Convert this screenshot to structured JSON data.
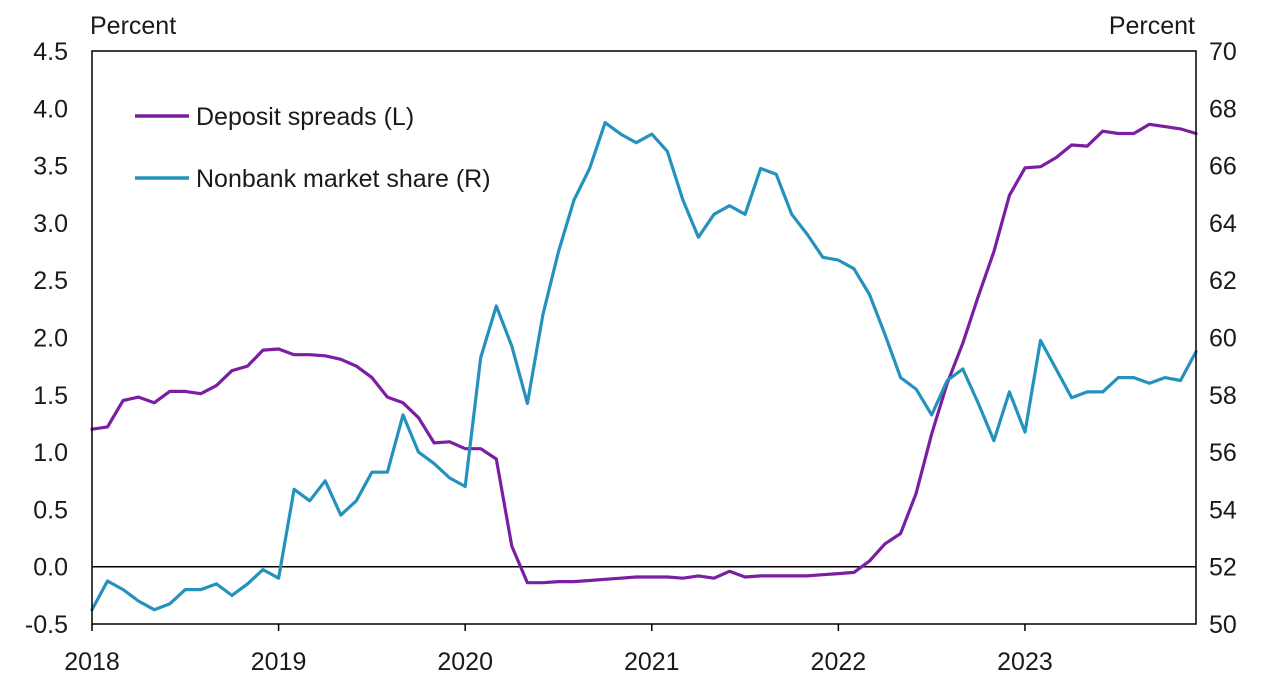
{
  "chart_data": {
    "type": "line",
    "title": "",
    "left_axis": {
      "label": "Percent",
      "ylim": [
        -0.5,
        4.5
      ],
      "ticks": [
        "4.5",
        "4.0",
        "3.5",
        "3.0",
        "2.5",
        "2.0",
        "1.5",
        "1.0",
        "0.5",
        "0.0",
        "-0.5"
      ]
    },
    "right_axis": {
      "label": "Percent",
      "ylim": [
        50,
        70
      ],
      "ticks": [
        "70",
        "68",
        "66",
        "64",
        "62",
        "60",
        "58",
        "56",
        "54",
        "52",
        "50"
      ]
    },
    "x_axis": {
      "range": [
        "2018-01",
        "2023-12"
      ],
      "ticks": [
        "2018",
        "2019",
        "2020",
        "2021",
        "2022",
        "2023"
      ]
    },
    "zero_line": true,
    "grid": false,
    "legend_placement": "top-left",
    "series": [
      {
        "name": "Deposit spreads (L)",
        "axis": "left",
        "color": "#7B1FA2",
        "x": [
          "2018-01",
          "2018-02",
          "2018-03",
          "2018-04",
          "2018-05",
          "2018-06",
          "2018-07",
          "2018-08",
          "2018-09",
          "2018-10",
          "2018-11",
          "2018-12",
          "2019-01",
          "2019-02",
          "2019-03",
          "2019-04",
          "2019-05",
          "2019-06",
          "2019-07",
          "2019-08",
          "2019-09",
          "2019-10",
          "2019-11",
          "2019-12",
          "2020-01",
          "2020-02",
          "2020-03",
          "2020-04",
          "2020-05",
          "2020-06",
          "2020-07",
          "2020-08",
          "2020-09",
          "2020-10",
          "2020-11",
          "2020-12",
          "2021-01",
          "2021-02",
          "2021-03",
          "2021-04",
          "2021-05",
          "2021-06",
          "2021-07",
          "2021-08",
          "2021-09",
          "2021-10",
          "2021-11",
          "2021-12",
          "2022-01",
          "2022-02",
          "2022-03",
          "2022-04",
          "2022-05",
          "2022-06",
          "2022-07",
          "2022-08",
          "2022-09",
          "2022-10",
          "2022-11",
          "2022-12",
          "2023-01",
          "2023-02",
          "2023-03",
          "2023-04",
          "2023-05",
          "2023-06",
          "2023-07",
          "2023-08",
          "2023-09",
          "2023-10",
          "2023-11",
          "2023-12"
        ],
        "values": [
          1.2,
          1.22,
          1.45,
          1.48,
          1.43,
          1.53,
          1.53,
          1.51,
          1.58,
          1.71,
          1.75,
          1.89,
          1.9,
          1.85,
          1.85,
          1.84,
          1.81,
          1.75,
          1.65,
          1.48,
          1.43,
          1.3,
          1.08,
          1.09,
          1.03,
          1.03,
          0.94,
          0.18,
          -0.14,
          -0.14,
          -0.13,
          -0.13,
          -0.12,
          -0.11,
          -0.1,
          -0.09,
          -0.09,
          -0.09,
          -0.1,
          -0.08,
          -0.1,
          -0.04,
          -0.09,
          -0.08,
          -0.08,
          -0.08,
          -0.08,
          -0.07,
          -0.06,
          -0.05,
          0.05,
          0.2,
          0.29,
          0.64,
          1.16,
          1.6,
          1.95,
          2.36,
          2.75,
          3.24,
          3.48,
          3.49,
          3.57,
          3.68,
          3.67,
          3.8,
          3.78,
          3.78,
          3.86,
          3.84,
          3.82,
          3.78
        ]
      },
      {
        "name": "Nonbank market share (R)",
        "axis": "right",
        "color": "#2592BD",
        "x": [
          "2018-01",
          "2018-02",
          "2018-03",
          "2018-04",
          "2018-05",
          "2018-06",
          "2018-07",
          "2018-08",
          "2018-09",
          "2018-10",
          "2018-11",
          "2018-12",
          "2019-01",
          "2019-02",
          "2019-03",
          "2019-04",
          "2019-05",
          "2019-06",
          "2019-07",
          "2019-08",
          "2019-09",
          "2019-10",
          "2019-11",
          "2019-12",
          "2020-01",
          "2020-02",
          "2020-03",
          "2020-04",
          "2020-05",
          "2020-06",
          "2020-07",
          "2020-08",
          "2020-09",
          "2020-10",
          "2020-11",
          "2020-12",
          "2021-01",
          "2021-02",
          "2021-03",
          "2021-04",
          "2021-05",
          "2021-06",
          "2021-07",
          "2021-08",
          "2021-09",
          "2021-10",
          "2021-11",
          "2021-12",
          "2022-01",
          "2022-02",
          "2022-03",
          "2022-04",
          "2022-05",
          "2022-06",
          "2022-07",
          "2022-08",
          "2022-09",
          "2022-10",
          "2022-11",
          "2022-12",
          "2023-01",
          "2023-02",
          "2023-03",
          "2023-04",
          "2023-05",
          "2023-06",
          "2023-07",
          "2023-08",
          "2023-09",
          "2023-10",
          "2023-11",
          "2023-12"
        ],
        "values": [
          50.5,
          51.5,
          51.2,
          50.8,
          50.5,
          50.7,
          51.2,
          51.2,
          51.4,
          51.0,
          51.4,
          51.9,
          51.6,
          54.7,
          54.3,
          55.0,
          53.8,
          54.3,
          55.3,
          55.3,
          57.3,
          56.0,
          55.6,
          55.1,
          54.8,
          59.3,
          61.1,
          59.7,
          57.7,
          60.8,
          63.0,
          64.8,
          65.9,
          67.5,
          67.1,
          66.8,
          67.1,
          66.5,
          64.8,
          63.5,
          64.3,
          64.6,
          64.3,
          65.9,
          65.7,
          64.3,
          63.6,
          62.8,
          62.7,
          62.4,
          61.5,
          60.1,
          58.6,
          58.2,
          57.3,
          58.5,
          58.9,
          57.7,
          56.4,
          58.1,
          56.7,
          59.9,
          58.9,
          57.9,
          58.1,
          58.1,
          58.6,
          58.6,
          58.4,
          58.6,
          58.5,
          59.5
        ]
      }
    ]
  }
}
